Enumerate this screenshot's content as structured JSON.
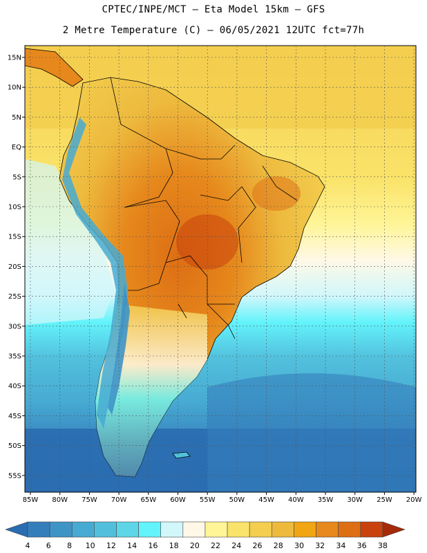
{
  "header": {
    "line1": "CPTEC/INPE/MCT –  Eta Model 15km – GFS",
    "line2": "2 Metre Temperature (C) – 06/05/2021 12UTC fct=77h"
  },
  "map": {
    "lat_labels": [
      "15N",
      "10N",
      "5N",
      "EQ",
      "5S",
      "10S",
      "15S",
      "20S",
      "25S",
      "30S",
      "35S",
      "40S",
      "45S",
      "50S",
      "55S"
    ],
    "lon_labels": [
      "85W",
      "80W",
      "75W",
      "70W",
      "65W",
      "60W",
      "55W",
      "50W",
      "45W",
      "40W",
      "35W",
      "30W",
      "25W",
      "20W"
    ]
  },
  "colorbar": {
    "labels": [
      "4",
      "6",
      "8",
      "10",
      "12",
      "14",
      "16",
      "18",
      "20",
      "22",
      "24",
      "26",
      "28",
      "30",
      "32",
      "34",
      "36",
      "38"
    ],
    "colors": [
      "#2a6db0",
      "#357ebc",
      "#3f94c6",
      "#47aad2",
      "#52c0dd",
      "#5ed6e8",
      "#63f3fb",
      "#d2f7fb",
      "#fff8e6",
      "#fff597",
      "#fae36a",
      "#f3ce4f",
      "#edba3e",
      "#f1a512",
      "#e6881c",
      "#dd6e14",
      "#c9410c",
      "#a52a09"
    ]
  },
  "colors": {
    "ocean_north": "#f3ce4f",
    "ocean_south": "#2a6db0",
    "land": "#edba3e",
    "land_hot": "#dd6e14",
    "andes": "#47aad2",
    "border": "#000000"
  }
}
